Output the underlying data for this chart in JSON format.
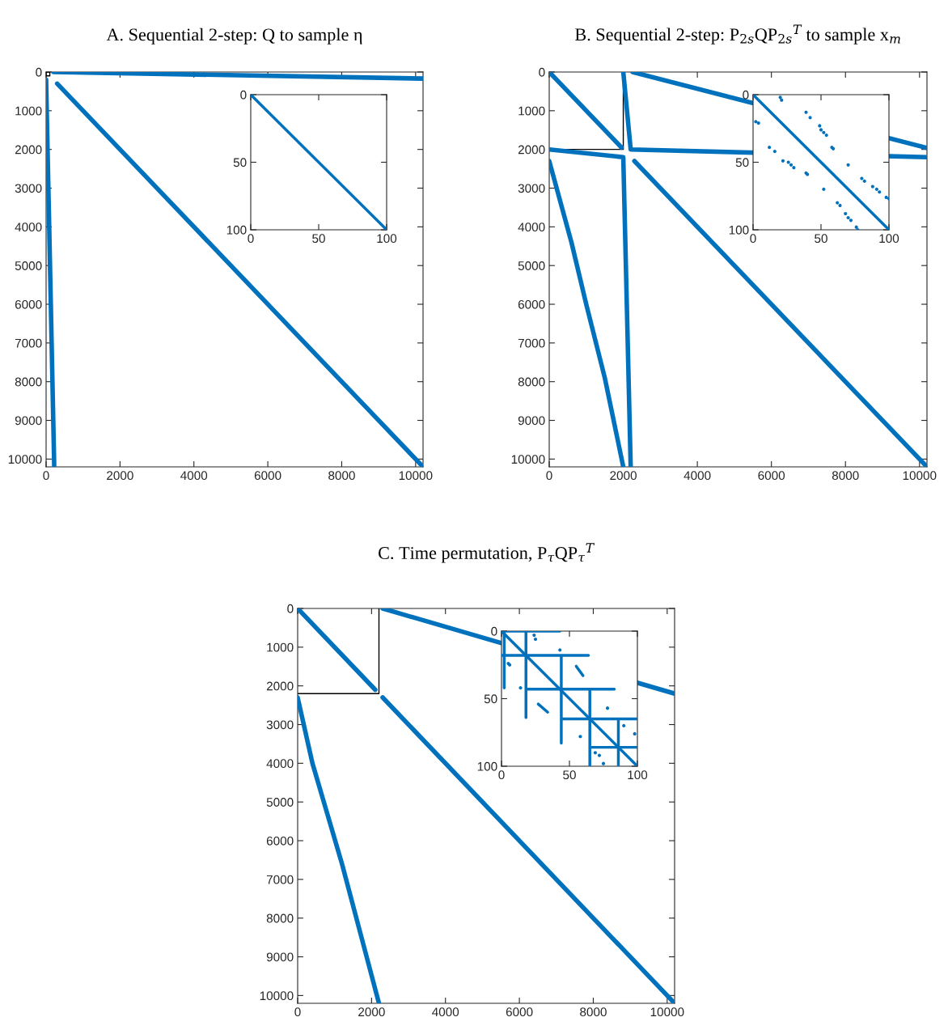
{
  "chart_data": [
    {
      "type": "line",
      "title": "A. Sequential 2-step: Q to sample η",
      "xlim": [
        0,
        10201
      ],
      "ylim": [
        10201,
        0
      ],
      "xticks": [
        0,
        2000,
        4000,
        6000,
        8000,
        10000
      ],
      "yticks": [
        0,
        1000,
        2000,
        3000,
        4000,
        5000,
        6000,
        7000,
        8000,
        9000,
        10000
      ],
      "grid": false,
      "series": [
        {
          "type": "line",
          "color": "#0072bd",
          "x": [
            200,
            10200
          ],
          "values": [
            0,
            170
          ]
        },
        {
          "type": "line",
          "color": "#0072bd",
          "x": [
            0,
            220
          ],
          "values": [
            200,
            10200
          ]
        },
        {
          "type": "line",
          "color": "#0072bd",
          "x": [
            300,
            10200
          ],
          "values": [
            300,
            10200
          ]
        }
      ]
    },
    {
      "type": "line",
      "xlim": [
        0,
        100
      ],
      "ylim": [
        100,
        0
      ],
      "xticks": [
        0,
        50,
        100
      ],
      "yticks": [
        0,
        50,
        100
      ],
      "grid": false,
      "series": [
        {
          "type": "line",
          "color": "#0072bd",
          "x": [
            0,
            100
          ],
          "values": [
            0,
            100
          ]
        }
      ]
    },
    {
      "type": "line",
      "title": "B. Sequential 2-step: P$_{2s}$QP$_{2s}$$^{T}$ to sample x$_{m}$",
      "xlim": [
        0,
        10201
      ],
      "ylim": [
        10201,
        0
      ],
      "xticks": [
        0,
        2000,
        4000,
        6000,
        8000,
        10000
      ],
      "yticks": [
        0,
        1000,
        2000,
        3000,
        4000,
        5000,
        6000,
        7000,
        8000,
        9000,
        10000
      ],
      "grid": false,
      "series": [
        {
          "type": "line",
          "color": "#0072bd",
          "x": [
            0,
            1950
          ],
          "values": [
            0,
            1950
          ]
        },
        {
          "type": "line",
          "color": "#0072bd",
          "x": [
            2250,
            10200
          ],
          "values": [
            0,
            1960
          ]
        },
        {
          "type": "line",
          "color": "#0072bd",
          "x": [
            2000,
            2200,
            10200
          ],
          "values": [
            0,
            2000,
            2200
          ]
        },
        {
          "type": "line",
          "color": "#0072bd",
          "x": [
            0,
            2000,
            2200
          ],
          "values": [
            2000,
            2200,
            10200
          ]
        },
        {
          "type": "line",
          "color": "#0072bd",
          "x": [
            0,
            600,
            1000,
            1500,
            2000
          ],
          "values": [
            2300,
            4400,
            6000,
            7900,
            10200
          ]
        },
        {
          "type": "line",
          "color": "#0072bd",
          "x": [
            2300,
            10200
          ],
          "values": [
            2300,
            10200
          ]
        },
        {
          "type": "line",
          "color": "#000000",
          "x": [
            2000,
            2000,
            0
          ],
          "values": [
            0,
            2000,
            2000
          ]
        }
      ]
    },
    {
      "type": "line",
      "xlim": [
        0,
        100
      ],
      "ylim": [
        100,
        0
      ],
      "xticks": [
        0,
        50,
        100
      ],
      "yticks": [
        0,
        50,
        100
      ],
      "grid": false,
      "series": [
        {
          "type": "line",
          "color": "#0072bd",
          "x": [
            0,
            100
          ],
          "values": [
            0,
            100
          ]
        },
        {
          "type": "scatter",
          "color": "#0072bd",
          "x": [
            20,
            21,
            2,
            4,
            39,
            42,
            49,
            50,
            52,
            54,
            58,
            59,
            12,
            16,
            22,
            26,
            28,
            30,
            39,
            40,
            70,
            52,
            80,
            82,
            88,
            91,
            93,
            98,
            100,
            62,
            64,
            68,
            70,
            72,
            76,
            77
          ],
          "values": [
            2,
            4,
            20,
            21,
            13,
            17,
            23,
            26,
            28,
            30,
            39,
            40,
            39,
            42,
            49,
            50,
            52,
            54,
            58,
            59,
            52,
            70,
            62,
            64,
            68,
            70,
            72,
            76,
            77,
            80,
            82,
            88,
            91,
            93,
            98,
            100
          ]
        }
      ]
    },
    {
      "type": "line",
      "title": "C. Time permutation, P$_{τ}$QP$_{τ}$$^{T}$",
      "xlim": [
        0,
        10201
      ],
      "ylim": [
        10201,
        0
      ],
      "xticks": [
        0,
        2000,
        4000,
        6000,
        8000,
        10000
      ],
      "yticks": [
        0,
        1000,
        2000,
        3000,
        4000,
        5000,
        6000,
        7000,
        8000,
        9000,
        10000
      ],
      "grid": false,
      "series": [
        {
          "type": "line",
          "color": "#0072bd",
          "x": [
            0,
            2100
          ],
          "values": [
            0,
            2100
          ]
        },
        {
          "type": "line",
          "color": "#0072bd",
          "x": [
            2300,
            10200
          ],
          "values": [
            0,
            2200
          ]
        },
        {
          "type": "line",
          "color": "#0072bd",
          "x": [
            0,
            400,
            800,
            1200,
            1700,
            2200
          ],
          "values": [
            2300,
            4000,
            5300,
            6600,
            8400,
            10200
          ]
        },
        {
          "type": "line",
          "color": "#0072bd",
          "x": [
            2300,
            10200
          ],
          "values": [
            2300,
            10200
          ]
        },
        {
          "type": "line",
          "color": "#000000",
          "x": [
            2200,
            2200,
            0
          ],
          "values": [
            0,
            2200,
            2200
          ]
        }
      ]
    },
    {
      "type": "line",
      "xlim": [
        0,
        100
      ],
      "ylim": [
        100,
        0
      ],
      "xticks": [
        0,
        50,
        100
      ],
      "yticks": [
        0,
        50,
        100
      ],
      "grid": false,
      "series": [
        {
          "type": "line",
          "color": "#0072bd",
          "x": [
            0,
            100
          ],
          "values": [
            0,
            100
          ]
        },
        {
          "type": "line",
          "color": "#0072bd",
          "x": [
            0,
            43,
            null,
            2,
            2,
            null,
            0,
            64,
            null,
            18,
            18,
            null,
            18,
            83,
            null,
            44,
            44,
            null,
            44,
            100,
            null,
            65,
            65,
            null,
            65,
            100,
            null,
            86,
            86
          ],
          "values": [
            0,
            0,
            null,
            0,
            42,
            null,
            18,
            18,
            null,
            0,
            64,
            null,
            43,
            43,
            null,
            18,
            83,
            null,
            65,
            65,
            null,
            44,
            100,
            null,
            86,
            86,
            null,
            65,
            100
          ]
        },
        {
          "type": "line",
          "color": "#0072bd",
          "x": [
            55,
            60,
            null,
            27,
            34
          ],
          "values": [
            26,
            33,
            null,
            54,
            60
          ]
        },
        {
          "type": "scatter",
          "color": "#0072bd",
          "x": [
            43,
            24,
            25,
            14,
            78,
            58,
            90,
            98,
            69,
            72,
            75,
            5,
            6
          ],
          "values": [
            14,
            3,
            6,
            42,
            57,
            78,
            70,
            76,
            90,
            92,
            98,
            24,
            25
          ]
        }
      ]
    }
  ]
}
